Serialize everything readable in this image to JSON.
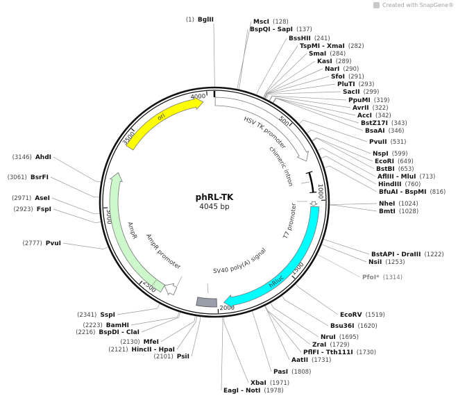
{
  "watermark": {
    "text": "Created with SnapGene®",
    "icon": "snapgene-logo-icon"
  },
  "plasmid": {
    "name": "phRL-TK",
    "size_label": "4045 bp",
    "length": 4045
  },
  "ticks": [
    500,
    1000,
    1500,
    2000,
    2500,
    3000,
    3500,
    4000
  ],
  "features": [
    {
      "name": "HSV TK promoter",
      "start": 5,
      "end": 742,
      "type": "arrow",
      "color": "#ffffff"
    },
    {
      "name": "chimeric intron",
      "start": 816,
      "end": 948,
      "type": "intron",
      "color": "#000000"
    },
    {
      "name": "T7 promoter",
      "start": 1008,
      "end": 1034,
      "type": "arrow",
      "color": "#ffffff"
    },
    {
      "name": "hRluc",
      "start": 1040,
      "end": 1962,
      "type": "arrow",
      "color": "#00ffff"
    },
    {
      "name": "SV40 poly(A) signal",
      "start": 2008,
      "end": 2135,
      "type": "box",
      "color": "#999ea8"
    },
    {
      "name": "AmpR promoter",
      "start": 2290,
      "end": 2370,
      "type": "arrow",
      "color": "#ffffff"
    },
    {
      "name": "AmpR",
      "start": 2370,
      "end": 3225,
      "type": "arrow",
      "color": "#ccf8cc"
    },
    {
      "name": "ori",
      "start": 3400,
      "end": 3973,
      "type": "arrow",
      "color": "#ffff00"
    }
  ],
  "enzymes": [
    {
      "name": "BglII",
      "pos": 1
    },
    {
      "name": "MscI",
      "pos": 128
    },
    {
      "name": "BspQI - SapI",
      "pos": 137
    },
    {
      "name": "BssHII",
      "pos": 241
    },
    {
      "name": "TspMI - XmaI",
      "pos": 282
    },
    {
      "name": "SmaI",
      "pos": 284
    },
    {
      "name": "KasI",
      "pos": 289
    },
    {
      "name": "NarI",
      "pos": 290
    },
    {
      "name": "SfoI",
      "pos": 291
    },
    {
      "name": "PluTI",
      "pos": 293
    },
    {
      "name": "SacII",
      "pos": 299
    },
    {
      "name": "PpuMI",
      "pos": 319
    },
    {
      "name": "AvrII",
      "pos": 322
    },
    {
      "name": "AccI",
      "pos": 342
    },
    {
      "name": "BstZ17I",
      "pos": 343
    },
    {
      "name": "BsaAI",
      "pos": 346
    },
    {
      "name": "PvuII",
      "pos": 531
    },
    {
      "name": "NspI",
      "pos": 599
    },
    {
      "name": "EcoRI",
      "pos": 649
    },
    {
      "name": "BstBI",
      "pos": 653
    },
    {
      "name": "AflIII - MluI",
      "pos": 713
    },
    {
      "name": "HindIII",
      "pos": 760
    },
    {
      "name": "BfuAI - BspMI",
      "pos": 816
    },
    {
      "name": "NheI",
      "pos": 1024
    },
    {
      "name": "BmtI",
      "pos": 1028
    },
    {
      "name": "BstAPI - DraIII",
      "pos": 1222
    },
    {
      "name": "NsiI",
      "pos": 1253
    },
    {
      "name": "PfoI*",
      "pos": 1314,
      "muted": true
    },
    {
      "name": "EcoRV",
      "pos": 1519
    },
    {
      "name": "Bsu36I",
      "pos": 1620
    },
    {
      "name": "NruI",
      "pos": 1695
    },
    {
      "name": "ZraI",
      "pos": 1729
    },
    {
      "name": "PflFI - Tth111I",
      "pos": 1730
    },
    {
      "name": "AatII",
      "pos": 1731
    },
    {
      "name": "PasI",
      "pos": 1808
    },
    {
      "name": "XbaI",
      "pos": 1971
    },
    {
      "name": "EagI - NotI",
      "pos": 1978
    },
    {
      "name": "PsiI",
      "pos": 2101
    },
    {
      "name": "HincII - HpaI",
      "pos": 2121
    },
    {
      "name": "MfeI",
      "pos": 2130
    },
    {
      "name": "BspDI - ClaI",
      "pos": 2216
    },
    {
      "name": "BamHI",
      "pos": 2223
    },
    {
      "name": "SspI",
      "pos": 2341
    },
    {
      "name": "PvuI",
      "pos": 2777
    },
    {
      "name": "FspI",
      "pos": 2923
    },
    {
      "name": "AseI",
      "pos": 2971
    },
    {
      "name": "BsrFI",
      "pos": 3061
    },
    {
      "name": "AhdI",
      "pos": 3146
    }
  ]
}
